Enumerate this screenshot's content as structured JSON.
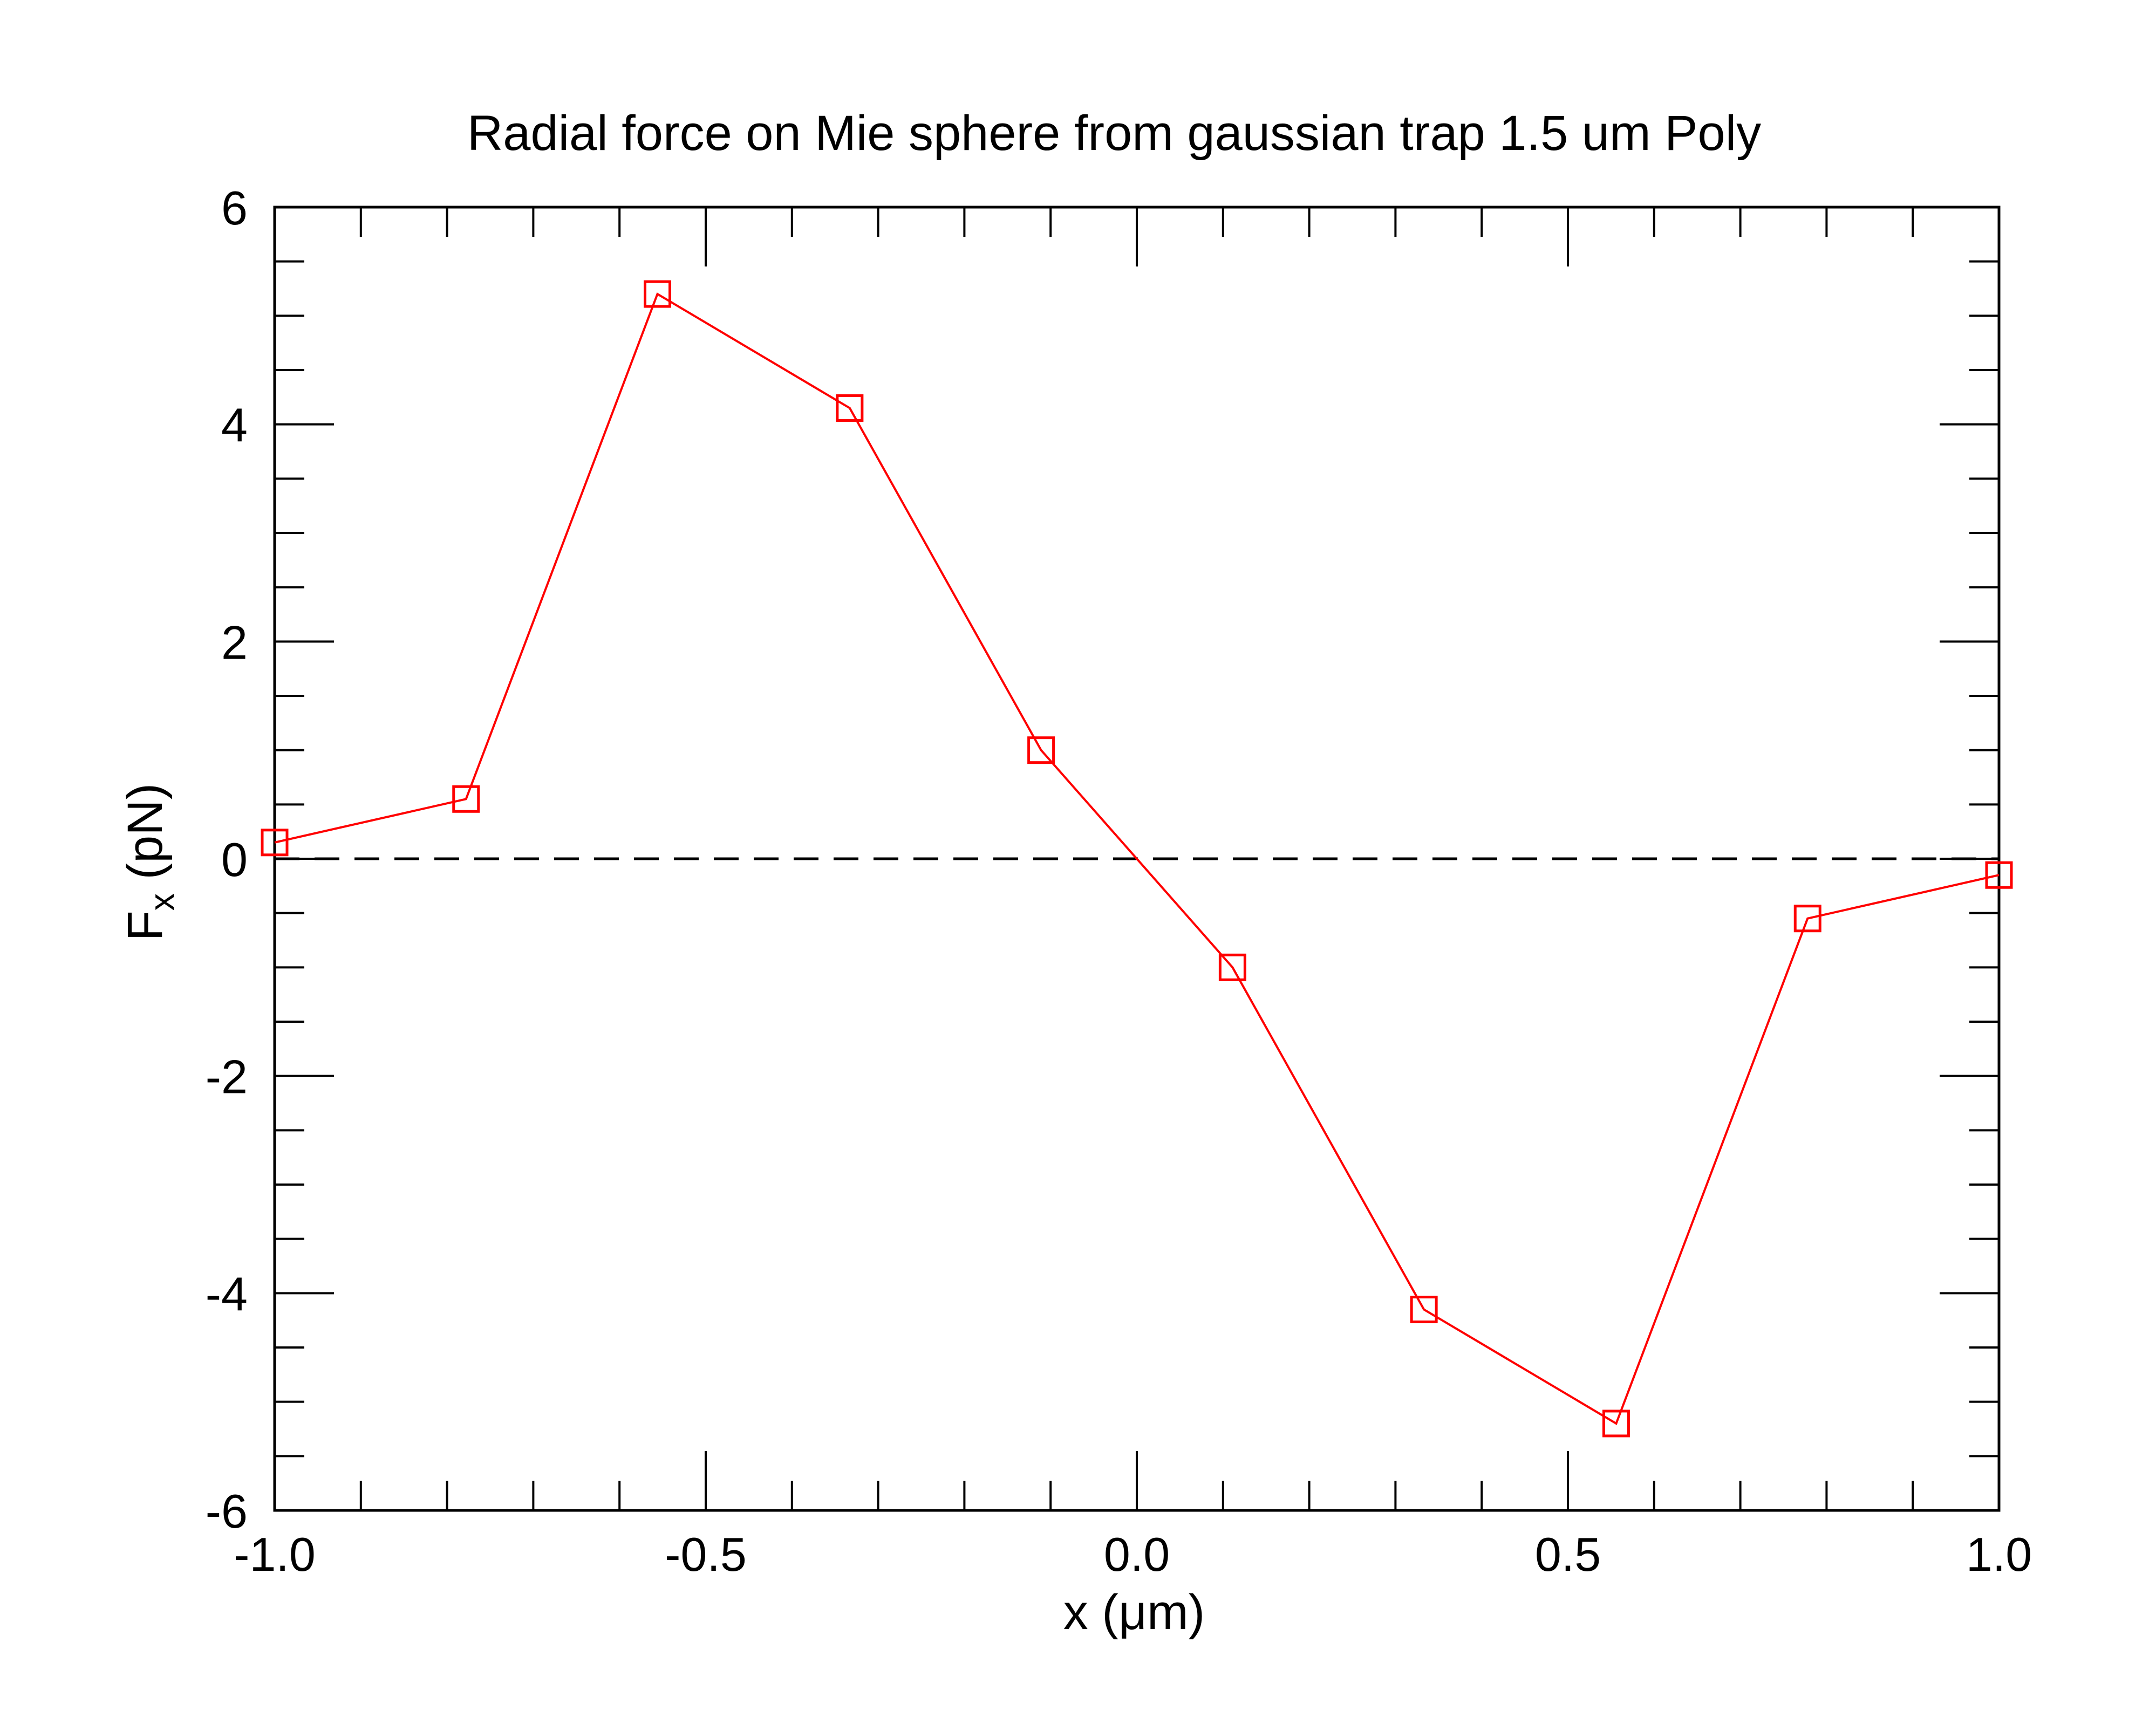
{
  "chart_data": {
    "type": "line",
    "title": "Radial force on Mie sphere from gaussian trap 1.5 um Poly",
    "xlabel": "x (μm)",
    "ylabel": {
      "main": "F",
      "subscript": "x",
      "unit": " (pN)"
    },
    "xlim": [
      -1.0,
      1.0
    ],
    "ylim": [
      -6,
      6
    ],
    "x_ticks": [
      -1.0,
      -0.5,
      0.0,
      0.5,
      1.0
    ],
    "x_tick_labels": [
      "-1.0",
      "-0.5",
      "0.0",
      "0.5",
      "1.0"
    ],
    "x_minor_step": 0.1,
    "y_ticks": [
      -6,
      -4,
      -2,
      0,
      2,
      4,
      6
    ],
    "y_tick_labels": [
      "-6",
      "-4",
      "-2",
      "0",
      "2",
      "4",
      "6"
    ],
    "y_minor_step": 0.5,
    "grid": false,
    "reference_line": {
      "y": 0,
      "style": "dashed",
      "color": "#000000"
    },
    "series": [
      {
        "color": "#ff0000",
        "marker": "open-square",
        "x": [
          -1.0,
          -0.778,
          -0.556,
          -0.333,
          -0.111,
          0.111,
          0.333,
          0.556,
          0.778,
          1.0
        ],
        "y": [
          0.15,
          0.55,
          5.2,
          4.15,
          1.0,
          -1.0,
          -4.15,
          -5.2,
          -0.55,
          -0.15
        ]
      }
    ]
  }
}
